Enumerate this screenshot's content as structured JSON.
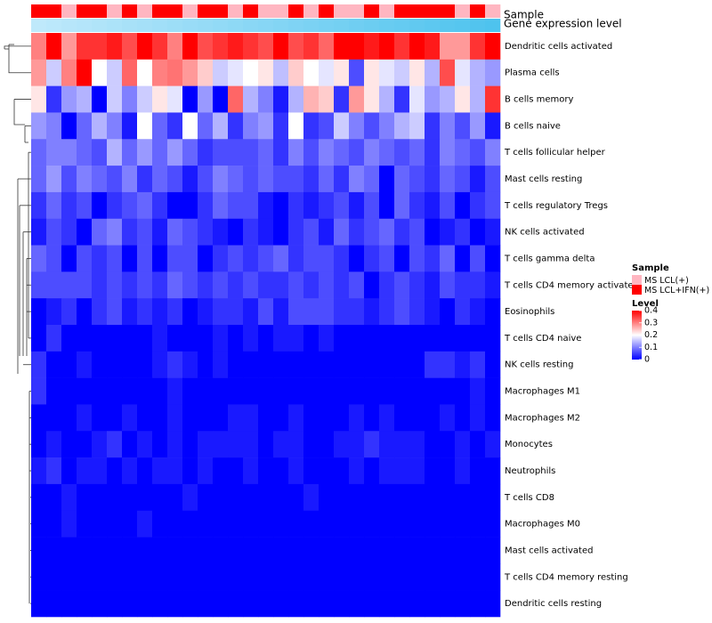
{
  "chart_data": {
    "type": "heatmap",
    "title": "",
    "columns": 31,
    "rows": [
      "Dendritic cells activated",
      "Plasma cells",
      "B cells memory",
      "B cells naive",
      "T cells follicular helper",
      "Mast cells resting",
      "T cells regulatory  Tregs",
      "NK cells activated",
      "T cells gamma delta",
      "T cells CD4 memory activated",
      "Eosinophils",
      "T cells CD4 naive",
      "NK cells resting",
      "Macrophages M1",
      "Macrophages M2",
      "Monocytes",
      "Neutrophils",
      "T cells CD8",
      "Macrophages M0",
      "Mast cells activated",
      "T cells CD4 memory resting",
      "Dendritic cells resting"
    ],
    "sample_groups": [
      1,
      1,
      0,
      1,
      1,
      0,
      1,
      0,
      1,
      1,
      0,
      1,
      1,
      0,
      1,
      0,
      0,
      1,
      0,
      1,
      0,
      0,
      1,
      0,
      1,
      1,
      1,
      1,
      0,
      1,
      0
    ],
    "values": [
      [
        0.3,
        0.4,
        0.28,
        0.36,
        0.36,
        0.38,
        0.34,
        0.4,
        0.36,
        0.3,
        0.4,
        0.34,
        0.36,
        0.38,
        0.36,
        0.34,
        0.4,
        0.34,
        0.36,
        0.32,
        0.4,
        0.4,
        0.38,
        0.4,
        0.36,
        0.4,
        0.38,
        0.28,
        0.28,
        0.36,
        0.4
      ],
      [
        0.28,
        0.16,
        0.3,
        0.4,
        0.2,
        0.16,
        0.32,
        0.2,
        0.3,
        0.31,
        0.28,
        0.24,
        0.16,
        0.18,
        0.2,
        0.22,
        0.15,
        0.24,
        0.2,
        0.18,
        0.22,
        0.06,
        0.22,
        0.18,
        0.16,
        0.22,
        0.14,
        0.34,
        0.18,
        0.14,
        0.12
      ],
      [
        0.22,
        0.04,
        0.12,
        0.14,
        0.0,
        0.16,
        0.1,
        0.16,
        0.22,
        0.18,
        0.0,
        0.12,
        0.0,
        0.32,
        0.14,
        0.1,
        0.02,
        0.14,
        0.26,
        0.24,
        0.04,
        0.28,
        0.22,
        0.14,
        0.04,
        0.18,
        0.12,
        0.14,
        0.22,
        0.14,
        0.36
      ],
      [
        0.12,
        0.1,
        0.0,
        0.08,
        0.14,
        0.1,
        0.02,
        0.2,
        0.08,
        0.04,
        0.2,
        0.08,
        0.14,
        0.04,
        0.1,
        0.12,
        0.04,
        0.2,
        0.04,
        0.06,
        0.16,
        0.1,
        0.06,
        0.1,
        0.14,
        0.16,
        0.04,
        0.1,
        0.06,
        0.12,
        0.02
      ],
      [
        0.08,
        0.1,
        0.1,
        0.08,
        0.06,
        0.14,
        0.08,
        0.12,
        0.08,
        0.12,
        0.08,
        0.04,
        0.06,
        0.06,
        0.06,
        0.08,
        0.04,
        0.1,
        0.06,
        0.1,
        0.08,
        0.06,
        0.1,
        0.08,
        0.06,
        0.08,
        0.04,
        0.1,
        0.08,
        0.06,
        0.1
      ],
      [
        0.08,
        0.12,
        0.06,
        0.1,
        0.08,
        0.06,
        0.1,
        0.04,
        0.08,
        0.06,
        0.02,
        0.06,
        0.1,
        0.08,
        0.06,
        0.08,
        0.06,
        0.06,
        0.04,
        0.08,
        0.04,
        0.1,
        0.08,
        0.0,
        0.08,
        0.06,
        0.04,
        0.08,
        0.06,
        0.02,
        0.06
      ],
      [
        0.04,
        0.08,
        0.04,
        0.06,
        0.0,
        0.04,
        0.06,
        0.08,
        0.04,
        0.0,
        0.0,
        0.04,
        0.08,
        0.06,
        0.06,
        0.02,
        0.0,
        0.04,
        0.02,
        0.04,
        0.06,
        0.02,
        0.06,
        0.0,
        0.08,
        0.04,
        0.02,
        0.06,
        0.0,
        0.04,
        0.06
      ],
      [
        0.02,
        0.06,
        0.04,
        0.0,
        0.08,
        0.1,
        0.04,
        0.06,
        0.02,
        0.08,
        0.06,
        0.04,
        0.02,
        0.0,
        0.04,
        0.02,
        0.0,
        0.04,
        0.06,
        0.02,
        0.08,
        0.04,
        0.06,
        0.08,
        0.04,
        0.06,
        0.0,
        0.02,
        0.04,
        0.0,
        0.02
      ],
      [
        0.08,
        0.06,
        0.0,
        0.06,
        0.04,
        0.06,
        0.0,
        0.06,
        0.0,
        0.06,
        0.06,
        0.0,
        0.04,
        0.06,
        0.04,
        0.06,
        0.08,
        0.04,
        0.06,
        0.06,
        0.04,
        0.0,
        0.04,
        0.06,
        0.0,
        0.06,
        0.04,
        0.08,
        0.0,
        0.06,
        0.0
      ],
      [
        0.06,
        0.06,
        0.06,
        0.06,
        0.04,
        0.06,
        0.04,
        0.06,
        0.04,
        0.08,
        0.06,
        0.04,
        0.06,
        0.04,
        0.06,
        0.04,
        0.04,
        0.06,
        0.04,
        0.06,
        0.04,
        0.06,
        0.0,
        0.04,
        0.06,
        0.04,
        0.02,
        0.06,
        0.04,
        0.04,
        0.02
      ],
      [
        0.0,
        0.02,
        0.04,
        0.0,
        0.04,
        0.06,
        0.02,
        0.04,
        0.02,
        0.04,
        0.0,
        0.02,
        0.04,
        0.04,
        0.02,
        0.06,
        0.02,
        0.06,
        0.06,
        0.06,
        0.04,
        0.04,
        0.02,
        0.04,
        0.06,
        0.04,
        0.02,
        0.0,
        0.04,
        0.02,
        0.0
      ],
      [
        0.0,
        0.04,
        0.0,
        0.0,
        0.0,
        0.0,
        0.0,
        0.0,
        0.02,
        0.0,
        0.0,
        0.0,
        0.02,
        0.0,
        0.02,
        0.0,
        0.02,
        0.02,
        0.0,
        0.02,
        0.0,
        0.0,
        0.0,
        0.0,
        0.0,
        0.0,
        0.0,
        0.0,
        0.0,
        0.0,
        0.0
      ],
      [
        0.04,
        0.0,
        0.0,
        0.02,
        0.0,
        0.0,
        0.0,
        0.0,
        0.02,
        0.04,
        0.02,
        0.0,
        0.02,
        0.0,
        0.0,
        0.0,
        0.0,
        0.0,
        0.0,
        0.0,
        0.0,
        0.0,
        0.0,
        0.0,
        0.0,
        0.0,
        0.04,
        0.04,
        0.02,
        0.04,
        0.0
      ],
      [
        0.04,
        0.0,
        0.0,
        0.0,
        0.0,
        0.0,
        0.0,
        0.0,
        0.0,
        0.02,
        0.0,
        0.0,
        0.0,
        0.0,
        0.0,
        0.0,
        0.0,
        0.0,
        0.0,
        0.0,
        0.0,
        0.0,
        0.0,
        0.0,
        0.0,
        0.0,
        0.0,
        0.0,
        0.0,
        0.02,
        0.0
      ],
      [
        0.0,
        0.0,
        0.0,
        0.02,
        0.0,
        0.0,
        0.02,
        0.0,
        0.0,
        0.02,
        0.0,
        0.0,
        0.0,
        0.02,
        0.02,
        0.0,
        0.0,
        0.02,
        0.0,
        0.0,
        0.0,
        0.02,
        0.0,
        0.02,
        0.0,
        0.0,
        0.0,
        0.02,
        0.0,
        0.02,
        0.0
      ],
      [
        0.0,
        0.02,
        0.0,
        0.0,
        0.02,
        0.04,
        0.0,
        0.02,
        0.0,
        0.02,
        0.0,
        0.02,
        0.02,
        0.02,
        0.02,
        0.0,
        0.02,
        0.02,
        0.0,
        0.0,
        0.02,
        0.02,
        0.04,
        0.02,
        0.02,
        0.02,
        0.0,
        0.0,
        0.02,
        0.0,
        0.02
      ],
      [
        0.02,
        0.04,
        0.0,
        0.02,
        0.02,
        0.0,
        0.02,
        0.0,
        0.02,
        0.02,
        0.0,
        0.02,
        0.0,
        0.0,
        0.02,
        0.0,
        0.0,
        0.02,
        0.0,
        0.0,
        0.0,
        0.02,
        0.0,
        0.02,
        0.02,
        0.02,
        0.0,
        0.0,
        0.02,
        0.0,
        0.0
      ],
      [
        0.0,
        0.0,
        0.02,
        0.0,
        0.0,
        0.0,
        0.0,
        0.0,
        0.0,
        0.0,
        0.02,
        0.0,
        0.0,
        0.0,
        0.0,
        0.0,
        0.0,
        0.0,
        0.02,
        0.0,
        0.0,
        0.0,
        0.0,
        0.0,
        0.0,
        0.0,
        0.0,
        0.0,
        0.0,
        0.0,
        0.0
      ],
      [
        0.0,
        0.0,
        0.02,
        0.0,
        0.0,
        0.0,
        0.0,
        0.02,
        0.0,
        0.0,
        0.0,
        0.0,
        0.0,
        0.0,
        0.0,
        0.0,
        0.0,
        0.0,
        0.0,
        0.0,
        0.0,
        0.0,
        0.0,
        0.0,
        0.0,
        0.0,
        0.0,
        0.0,
        0.0,
        0.0,
        0.0
      ],
      [
        0.0,
        0.0,
        0.0,
        0.0,
        0.0,
        0.0,
        0.0,
        0.0,
        0.0,
        0.0,
        0.0,
        0.0,
        0.0,
        0.0,
        0.0,
        0.0,
        0.0,
        0.0,
        0.0,
        0.0,
        0.0,
        0.0,
        0.0,
        0.0,
        0.0,
        0.0,
        0.0,
        0.0,
        0.0,
        0.0,
        0.0
      ],
      [
        0.0,
        0.0,
        0.0,
        0.0,
        0.0,
        0.0,
        0.0,
        0.0,
        0.0,
        0.0,
        0.0,
        0.0,
        0.0,
        0.0,
        0.0,
        0.0,
        0.0,
        0.0,
        0.0,
        0.0,
        0.0,
        0.0,
        0.0,
        0.0,
        0.0,
        0.0,
        0.0,
        0.0,
        0.0,
        0.0,
        0.0
      ],
      [
        0.0,
        0.0,
        0.0,
        0.0,
        0.0,
        0.0,
        0.0,
        0.0,
        0.0,
        0.0,
        0.0,
        0.0,
        0.0,
        0.0,
        0.0,
        0.0,
        0.0,
        0.0,
        0.0,
        0.0,
        0.0,
        0.0,
        0.0,
        0.0,
        0.0,
        0.0,
        0.0,
        0.0,
        0.0,
        0.0,
        0.0
      ]
    ],
    "annotations": {
      "sample_label": "Sample",
      "expression_label": "Gene expression level"
    },
    "legend": {
      "sample_title": "Sample",
      "sample_entries": [
        {
          "label": "MS LCL(+)",
          "color": "#ffb6c1"
        },
        {
          "label": "MS LCL+IFN(+)",
          "color": "#ff0000"
        }
      ],
      "level_title": "Level",
      "level_ticks": [
        "0.4",
        "0.3",
        "0.2",
        "0.1",
        "0"
      ],
      "level_tick_values": [
        0.4,
        0.3,
        0.2,
        0.1,
        0
      ],
      "range": [
        0,
        0.4
      ],
      "placement": "right"
    },
    "colors": {
      "low": "#0000ff",
      "mid": "#ffffff",
      "high": "#ff0000",
      "expression_bar_start": "#bfe9fb",
      "expression_bar_end": "#4ec3ee"
    }
  }
}
